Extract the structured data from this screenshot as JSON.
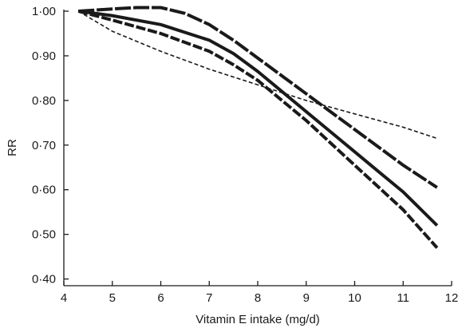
{
  "chart_data": {
    "type": "line",
    "title": "",
    "xlabel": "Vitamin E intake (mg/d)",
    "ylabel": "RR",
    "xlim": [
      4,
      12
    ],
    "ylim": [
      0.4,
      1.0
    ],
    "xticks": [
      4,
      5,
      6,
      7,
      8,
      9,
      10,
      11,
      12
    ],
    "xtick_labels": [
      "4",
      "5",
      "6",
      "7",
      "8",
      "9",
      "10",
      "11",
      "12"
    ],
    "yticks": [
      0.4,
      0.5,
      0.6,
      0.7,
      0.8,
      0.9,
      1.0
    ],
    "ytick_labels": [
      "0·40",
      "0·50",
      "0·60",
      "0·70",
      "0·80",
      "0·90",
      "1·00"
    ],
    "grid": false,
    "legend": "none",
    "series": [
      {
        "style": "thin-dashed",
        "x": [
          4.3,
          5.0,
          6.0,
          7.0,
          8.0,
          9.0,
          10.0,
          11.0,
          11.7
        ],
        "y": [
          1.0,
          0.955,
          0.91,
          0.87,
          0.835,
          0.8,
          0.77,
          0.74,
          0.715
        ]
      },
      {
        "style": "thick-long-dashed",
        "x": [
          4.3,
          5.0,
          5.5,
          6.0,
          6.5,
          7.0,
          7.5,
          8.0,
          8.5,
          9.0,
          9.5,
          10.0,
          10.5,
          11.0,
          11.7
        ],
        "y": [
          1.0,
          1.005,
          1.008,
          1.008,
          0.995,
          0.97,
          0.935,
          0.895,
          0.855,
          0.815,
          0.775,
          0.735,
          0.695,
          0.655,
          0.605
        ]
      },
      {
        "style": "thick-solid",
        "x": [
          4.3,
          5.0,
          6.0,
          7.0,
          7.5,
          8.0,
          8.5,
          9.0,
          9.5,
          10.0,
          10.5,
          11.0,
          11.7
        ],
        "y": [
          1.0,
          0.99,
          0.97,
          0.935,
          0.905,
          0.865,
          0.82,
          0.775,
          0.73,
          0.685,
          0.64,
          0.595,
          0.52
        ]
      },
      {
        "style": "thick-dashed",
        "x": [
          4.3,
          5.0,
          6.0,
          7.0,
          7.5,
          8.0,
          8.5,
          9.0,
          9.5,
          10.0,
          10.5,
          11.0,
          11.7
        ],
        "y": [
          1.0,
          0.98,
          0.95,
          0.91,
          0.88,
          0.845,
          0.8,
          0.755,
          0.705,
          0.655,
          0.605,
          0.555,
          0.47
        ]
      }
    ]
  }
}
